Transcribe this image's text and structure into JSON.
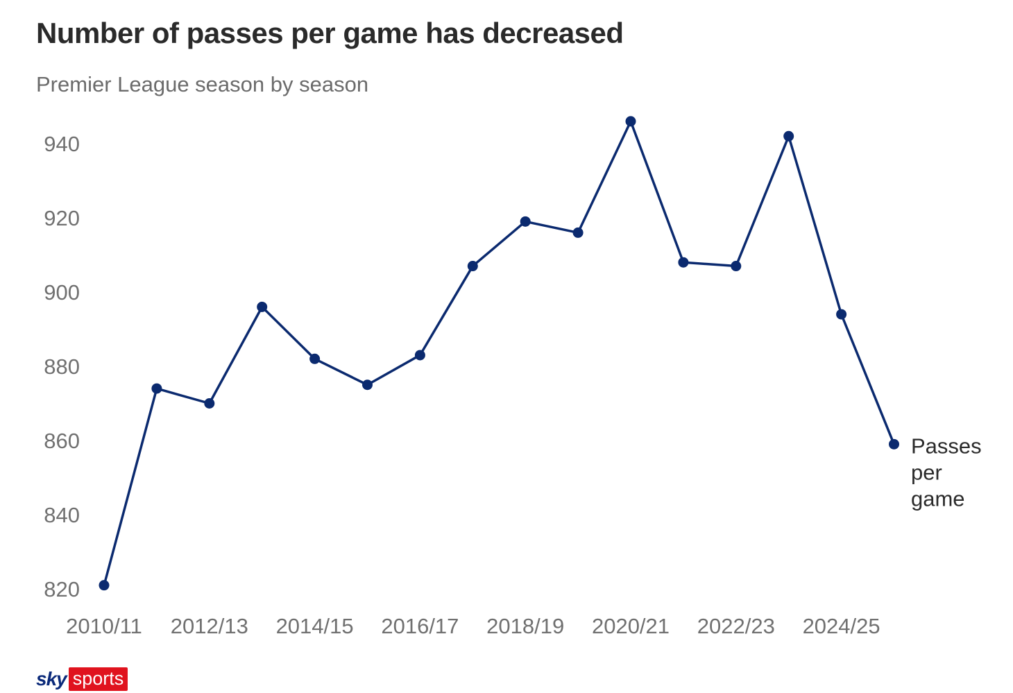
{
  "header": {
    "title": "Number of passes per game has decreased",
    "subtitle": "Premier League season by season"
  },
  "chart_data": {
    "type": "line",
    "title": "Number of passes per game has decreased",
    "subtitle": "Premier League season by season",
    "x": [
      "2010/11",
      "2011/12",
      "2012/13",
      "2013/14",
      "2014/15",
      "2015/16",
      "2016/17",
      "2017/18",
      "2018/19",
      "2019/20",
      "2020/21",
      "2021/22",
      "2022/23",
      "2023/24",
      "2024/25",
      "2025/26"
    ],
    "x_tick_labels": [
      "2010/11",
      "2012/13",
      "2014/15",
      "2016/17",
      "2018/19",
      "2020/21",
      "2022/23",
      "2024/25"
    ],
    "series": [
      {
        "name": "Passes per game",
        "label_lines": [
          "Passes",
          "per",
          "game"
        ],
        "color": "#0b2a6f",
        "values": [
          821,
          874,
          870,
          896,
          882,
          875,
          883,
          907,
          919,
          916,
          946,
          908,
          907,
          942,
          894,
          859
        ]
      }
    ],
    "y_ticks": [
      820,
      840,
      860,
      880,
      900,
      920,
      940
    ],
    "ylim": [
      820,
      950
    ],
    "xlabel": "",
    "ylabel": "",
    "grid": false,
    "legend": "direct label at end of line"
  },
  "brand": {
    "sky": "sky",
    "sports": "sports",
    "sky_color": "#0b2a7a",
    "sports_bg": "#e0131e"
  },
  "colors": {
    "title": "#2a2a2a",
    "subtitle": "#6b6b6b",
    "ticks": "#707070",
    "line": "#0b2a6f"
  }
}
